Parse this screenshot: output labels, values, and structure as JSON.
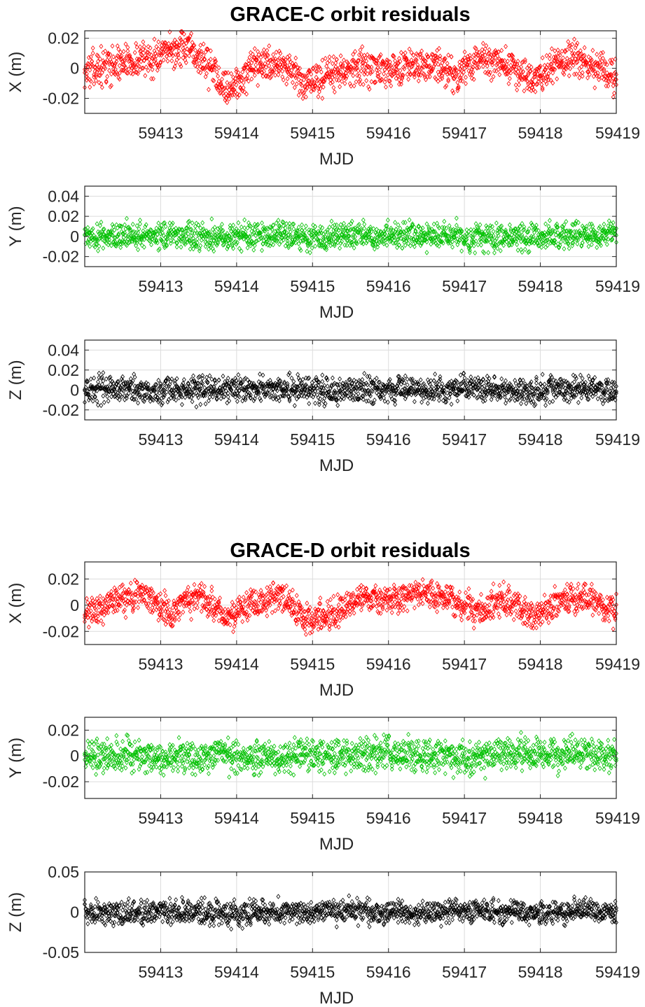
{
  "figure": {
    "titles": [
      {
        "id": "grace-c",
        "text": "GRACE-C orbit residuals"
      },
      {
        "id": "grace-d",
        "text": "GRACE-D orbit residuals"
      }
    ]
  },
  "chart_data": [
    {
      "type": "scatter",
      "group": "GRACE-C orbit residuals",
      "title": "GRACE-C orbit residuals",
      "xlabel": "MJD",
      "ylabel": "X (m)",
      "xlim": [
        59412.0,
        59419.0
      ],
      "ylim": [
        -0.03,
        0.025
      ],
      "xticks": [
        59413,
        59414,
        59415,
        59416,
        59417,
        59418,
        59419
      ],
      "xtick_labels": [
        "59413",
        "59414",
        "59415",
        "59416",
        "59417",
        "59418",
        "59419"
      ],
      "yticks": [
        -0.02,
        0,
        0.02
      ],
      "ytick_labels": [
        "-0.02",
        "0",
        "0.02"
      ],
      "grid": true,
      "marker": "diamond",
      "color": "#ff0000",
      "series": [
        {
          "x": [
            59412.0,
            59412.5,
            59413.0,
            59413.3,
            59413.6,
            59413.9,
            59414.3,
            59414.6,
            59414.9,
            59415.2,
            59415.6,
            59416.0,
            59416.3,
            59416.6,
            59416.9,
            59417.2,
            59417.6,
            59417.9,
            59418.3,
            59418.6,
            59419.0
          ],
          "values": [
            -0.002,
            0.004,
            0.008,
            0.014,
            0.004,
            -0.014,
            0.002,
            0.004,
            -0.012,
            -0.004,
            0.002,
            -0.003,
            0.004,
            0.002,
            -0.004,
            0.006,
            0.002,
            -0.008,
            0.006,
            0.004,
            -0.008
          ]
        }
      ]
    },
    {
      "type": "scatter",
      "group": "GRACE-C orbit residuals",
      "xlabel": "MJD",
      "ylabel": "Y (m)",
      "xlim": [
        59412.0,
        59419.0
      ],
      "ylim": [
        -0.03,
        0.05
      ],
      "xticks": [
        59413,
        59414,
        59415,
        59416,
        59417,
        59418,
        59419
      ],
      "xtick_labels": [
        "59413",
        "59414",
        "59415",
        "59416",
        "59417",
        "59418",
        "59419"
      ],
      "yticks": [
        -0.02,
        0,
        0.02,
        0.04
      ],
      "ytick_labels": [
        "-0.02",
        "0",
        "0.02",
        "0.04"
      ],
      "grid": true,
      "marker": "diamond",
      "color": "#00c000",
      "series": [
        {
          "x": [
            59412.0,
            59412.5,
            59413.0,
            59413.5,
            59414.0,
            59414.5,
            59415.0,
            59415.5,
            59416.0,
            59416.5,
            59417.0,
            59417.5,
            59418.0,
            59418.5,
            59419.0
          ],
          "values": [
            0.001,
            0.0,
            0.002,
            0.001,
            0.0,
            0.002,
            -0.001,
            0.001,
            0.0,
            0.002,
            0.0,
            -0.001,
            0.001,
            0.0,
            0.001
          ]
        }
      ]
    },
    {
      "type": "scatter",
      "group": "GRACE-C orbit residuals",
      "xlabel": "MJD",
      "ylabel": "Z (m)",
      "xlim": [
        59412.0,
        59419.0
      ],
      "ylim": [
        -0.03,
        0.05
      ],
      "xticks": [
        59413,
        59414,
        59415,
        59416,
        59417,
        59418,
        59419
      ],
      "xtick_labels": [
        "59413",
        "59414",
        "59415",
        "59416",
        "59417",
        "59418",
        "59419"
      ],
      "yticks": [
        -0.02,
        0,
        0.02,
        0.04
      ],
      "ytick_labels": [
        "-0.02",
        "0",
        "0.02",
        "0.04"
      ],
      "grid": true,
      "marker": "diamond",
      "color": "#000000",
      "series": [
        {
          "x": [
            59412.0,
            59412.5,
            59413.0,
            59413.5,
            59414.0,
            59414.5,
            59415.0,
            59415.5,
            59416.0,
            59416.5,
            59417.0,
            59417.5,
            59418.0,
            59418.5,
            59419.0
          ],
          "values": [
            0.0,
            0.002,
            -0.002,
            0.001,
            0.0,
            0.002,
            0.0,
            -0.001,
            0.001,
            0.0,
            0.001,
            -0.001,
            0.0,
            0.001,
            0.0
          ]
        }
      ]
    },
    {
      "type": "scatter",
      "group": "GRACE-D orbit residuals",
      "title": "GRACE-D orbit residuals",
      "xlabel": "MJD",
      "ylabel": "X (m)",
      "xlim": [
        59412.0,
        59419.0
      ],
      "ylim": [
        -0.03,
        0.033
      ],
      "xticks": [
        59413,
        59414,
        59415,
        59416,
        59417,
        59418,
        59419
      ],
      "xtick_labels": [
        "59413",
        "59414",
        "59415",
        "59416",
        "59417",
        "59418",
        "59419"
      ],
      "yticks": [
        -0.02,
        0,
        0.02
      ],
      "ytick_labels": [
        "-0.02",
        "0",
        "0.02"
      ],
      "grid": true,
      "marker": "diamond",
      "color": "#ff0000",
      "series": [
        {
          "x": [
            59412.0,
            59412.4,
            59412.8,
            59413.1,
            59413.5,
            59413.9,
            59414.2,
            59414.6,
            59414.9,
            59415.3,
            59415.7,
            59416.0,
            59416.4,
            59416.8,
            59417.2,
            59417.5,
            59417.9,
            59418.3,
            59418.6,
            59419.0
          ],
          "values": [
            -0.008,
            0.004,
            0.01,
            -0.006,
            0.008,
            -0.012,
            0.002,
            0.006,
            -0.01,
            -0.006,
            0.006,
            0.002,
            0.01,
            0.004,
            -0.006,
            0.006,
            -0.01,
            0.004,
            0.006,
            -0.006
          ]
        }
      ]
    },
    {
      "type": "scatter",
      "group": "GRACE-D orbit residuals",
      "xlabel": "MJD",
      "ylabel": "Y (m)",
      "xlim": [
        59412.0,
        59419.0
      ],
      "ylim": [
        -0.033,
        0.03
      ],
      "xticks": [
        59413,
        59414,
        59415,
        59416,
        59417,
        59418,
        59419
      ],
      "xtick_labels": [
        "59413",
        "59414",
        "59415",
        "59416",
        "59417",
        "59418",
        "59419"
      ],
      "yticks": [
        -0.02,
        0,
        0.02
      ],
      "ytick_labels": [
        "-0.02",
        "0",
        "0.02"
      ],
      "grid": true,
      "marker": "diamond",
      "color": "#00c000",
      "series": [
        {
          "x": [
            59412.0,
            59412.5,
            59413.0,
            59413.5,
            59414.0,
            59414.5,
            59415.0,
            59415.5,
            59416.0,
            59416.5,
            59417.0,
            59417.5,
            59418.0,
            59418.5,
            59419.0
          ],
          "values": [
            0.0,
            0.002,
            -0.002,
            0.0,
            0.002,
            -0.001,
            0.001,
            0.0,
            0.002,
            0.0,
            -0.001,
            0.001,
            0.0,
            0.002,
            0.0
          ]
        }
      ]
    },
    {
      "type": "scatter",
      "group": "GRACE-D orbit residuals",
      "xlabel": "MJD",
      "ylabel": "Z (m)",
      "xlim": [
        59412.0,
        59419.0
      ],
      "ylim": [
        -0.05,
        0.05
      ],
      "xticks": [
        59413,
        59414,
        59415,
        59416,
        59417,
        59418,
        59419
      ],
      "xtick_labels": [
        "59413",
        "59414",
        "59415",
        "59416",
        "59417",
        "59418",
        "59419"
      ],
      "yticks": [
        -0.05,
        0,
        0.05
      ],
      "ytick_labels": [
        "-0.05",
        "0",
        "0.05"
      ],
      "grid": true,
      "marker": "diamond",
      "color": "#000000",
      "series": [
        {
          "x": [
            59412.0,
            59412.5,
            59413.0,
            59413.5,
            59414.0,
            59414.5,
            59415.0,
            59415.5,
            59416.0,
            59416.5,
            59417.0,
            59417.5,
            59418.0,
            59418.5,
            59419.0
          ],
          "values": [
            0.0,
            -0.002,
            0.002,
            0.0,
            -0.002,
            0.002,
            0.0,
            0.001,
            -0.001,
            0.0,
            0.001,
            0.0,
            -0.001,
            0.001,
            0.0
          ]
        }
      ]
    }
  ]
}
